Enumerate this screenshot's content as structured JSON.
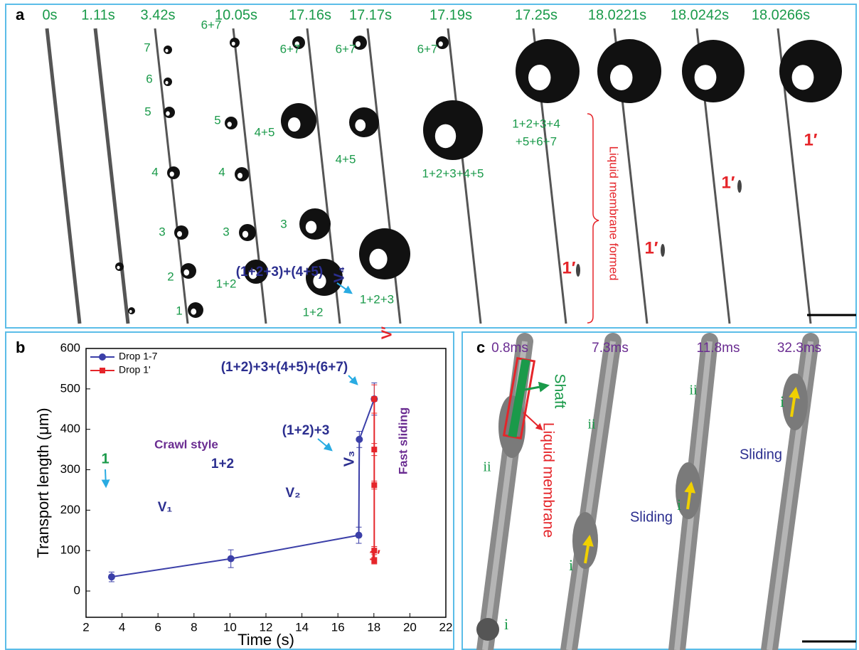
{
  "panel_a": {
    "label": "a",
    "times": [
      "0s",
      "1.11s",
      "3.42s",
      "10.05s",
      "17.16s",
      "17.17s",
      "17.19s",
      "17.25s",
      "18.0221s",
      "18.0242s",
      "18.0266s"
    ],
    "annotations": [
      "7",
      "6",
      "5",
      "4",
      "3",
      "2",
      "1",
      "6+7",
      "5",
      "4",
      "3",
      "1+2",
      "6+7",
      "4+5",
      "3",
      "1+2",
      "6+7",
      "4+5",
      "1+2+3",
      "6+7",
      "1+2+3+4+5",
      "1+2+3+4",
      "+5+6+7",
      "1′",
      "Liquid membrane formed",
      "1′",
      "1′",
      "1′"
    ]
  },
  "chart_data": {
    "type": "line",
    "panel_label": "b",
    "x_label": "Time (s)",
    "y_label": "Transport length (μm)",
    "xlim": [
      2,
      22
    ],
    "xticks": [
      2,
      4,
      6,
      8,
      10,
      12,
      14,
      16,
      18,
      20,
      22
    ],
    "ylim": [
      -65,
      600
    ],
    "yticks": [
      0,
      100,
      200,
      300,
      400,
      500,
      600
    ],
    "legend": "upper left",
    "series": [
      {
        "name": "Drop 1-7",
        "color": "#3b3fa8",
        "marker": "circle",
        "x": [
          3.42,
          10.05,
          17.16,
          17.19,
          18.02
        ],
        "values": [
          35,
          80,
          138,
          375,
          475
        ],
        "errors": [
          12,
          22,
          20,
          20,
          40
        ]
      },
      {
        "name": "Drop 1'",
        "color": "#e5252a",
        "marker": "square",
        "x": [
          18.02,
          18.02,
          18.02,
          18.02,
          18.02
        ],
        "values": [
          75,
          100,
          262,
          350,
          475
        ],
        "errors": [
          8,
          10,
          10,
          15,
          35
        ]
      }
    ],
    "annotations": [
      "1",
      "1+2",
      "(1+2)+3",
      "(1+2+3)+(4+5)",
      "(1+2)+3+(4+5)+(6+7)",
      "V₁",
      "V₂",
      "V₃",
      "V₄",
      "V′",
      "Crawl style",
      "Fast sliding",
      "1′"
    ]
  },
  "panel_c": {
    "label": "c",
    "times": [
      "0.8ms",
      "7.3ms",
      "11.8ms",
      "32.3ms"
    ],
    "annotations": [
      "Shaft",
      "Liquid membrane",
      "ii",
      "i",
      "ii",
      "i",
      "ii",
      "i",
      "Sliding",
      "i",
      "Sliding"
    ]
  }
}
